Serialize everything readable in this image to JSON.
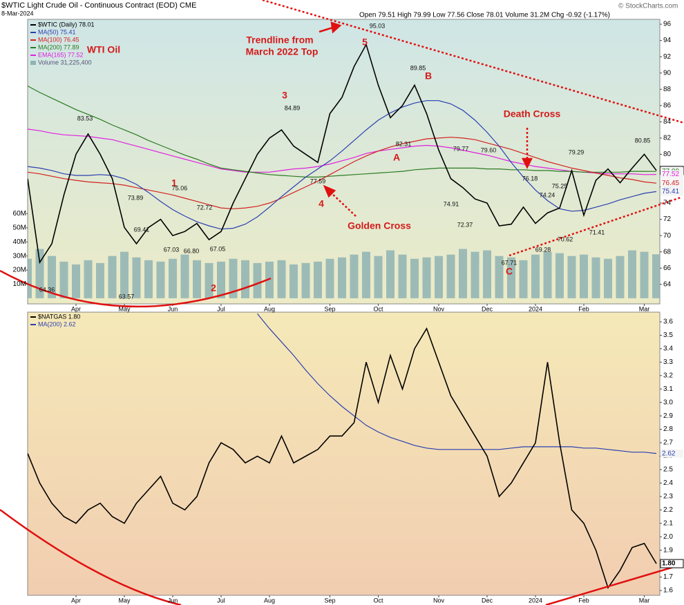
{
  "chart_data": [
    {
      "type": "line",
      "title": "$WTIC Light Crude Oil - Continuous Contract (EOD) CME",
      "date": "8-Mar-2024",
      "quote": "Open 79.51 High 79.99 Low 77.56 Close 78.01 Volume 31.2M Chg -0.92 (-1.17%)",
      "source": "© StockCharts.com",
      "categories": [
        null,
        null,
        null,
        null,
        "Apr",
        null,
        null,
        null,
        "May",
        null,
        null,
        null,
        "Jun",
        null,
        null,
        null,
        "Jul",
        null,
        null,
        null,
        "Aug",
        null,
        null,
        null,
        null,
        "Sep",
        null,
        null,
        null,
        "Oct",
        null,
        null,
        null,
        null,
        "Nov",
        null,
        null,
        null,
        "Dec",
        null,
        null,
        null,
        "2024",
        null,
        null,
        null,
        "Feb",
        null,
        null,
        null,
        null,
        "Mar",
        null
      ],
      "series": [
        {
          "name": "$WTIC (Daily) 78.01",
          "color": "#000000",
          "values": [
            77,
            66.7,
            69,
            75,
            80,
            82.5,
            80,
            77,
            71,
            69,
            71,
            72,
            70,
            70.5,
            71.5,
            69.5,
            70.5,
            74,
            77,
            80,
            82,
            83,
            81,
            80,
            79,
            85,
            87,
            90.8,
            93.5,
            88.5,
            84.5,
            86,
            88.5,
            85,
            80.5,
            77,
            75.9,
            74.5,
            74,
            71.2,
            71.4,
            73.5,
            71.5,
            72.8,
            73.4,
            78,
            72.5,
            76.8,
            78.2,
            76.5,
            78.3,
            80,
            78.01
          ]
        },
        {
          "name": "MA(50) 75.41",
          "color": "#2a3fb0",
          "values": [
            78.5,
            78.3,
            78,
            77.6,
            77.4,
            77.4,
            77.5,
            77.4,
            77,
            76.3,
            75.3,
            74.2,
            73.2,
            72.4,
            71.7,
            71.2,
            70.8,
            70.9,
            71.4,
            72.3,
            73.5,
            74.8,
            76,
            77.2,
            78.2,
            79.2,
            80.4,
            81.7,
            83,
            84.2,
            85.1,
            85.8,
            86.3,
            86.6,
            86.6,
            86.2,
            85.4,
            84.2,
            82.7,
            81,
            79,
            77.2,
            75.6,
            74.3,
            73.3,
            73,
            73.1,
            73.5,
            73.9,
            74.4,
            74.8,
            75.2,
            75.41
          ]
        },
        {
          "name": "MA(100) 76.45",
          "color": "#d42020",
          "values": [
            77.8,
            77.6,
            77.3,
            77,
            76.8,
            76.6,
            76.5,
            76.4,
            76.2,
            75.9,
            75.6,
            75.3,
            75,
            74.6,
            74.2,
            73.8,
            73.4,
            73.3,
            73.4,
            73.6,
            74,
            74.6,
            75.3,
            76,
            76.7,
            77.5,
            78.3,
            79.1,
            79.8,
            80.4,
            80.9,
            81.3,
            81.6,
            81.9,
            82,
            82.1,
            82,
            81.8,
            81.4,
            81,
            80.6,
            80.1,
            79.6,
            79.1,
            78.7,
            78.3,
            78,
            77.7,
            77.4,
            77.1,
            76.9,
            76.6,
            76.45
          ]
        },
        {
          "name": "MA(200) 77.89",
          "color": "#2a7a20",
          "values": [
            88.4,
            87.6,
            86.9,
            86.2,
            85.5,
            84.9,
            84.3,
            83.6,
            83,
            82.4,
            81.7,
            81.1,
            80.5,
            79.9,
            79.4,
            78.8,
            78.3,
            78.1,
            77.9,
            77.7,
            77.5,
            77.4,
            77.3,
            77.2,
            77.2,
            77.3,
            77.4,
            77.5,
            77.6,
            77.7,
            77.8,
            77.9,
            78.1,
            78.2,
            78.3,
            78.3,
            78.3,
            78.3,
            78.2,
            78.2,
            78.1,
            78.1,
            78,
            78,
            77.9,
            77.9,
            77.8,
            77.8,
            77.8,
            77.8,
            77.9,
            77.9,
            77.89
          ]
        },
        {
          "name": "EMA(165) 77.52",
          "color": "#e020e0",
          "values": [
            83.1,
            82.9,
            82.6,
            82.4,
            82.3,
            82.2,
            82,
            81.8,
            81.4,
            81,
            80.6,
            80.2,
            79.8,
            79.4,
            79,
            78.6,
            78.2,
            78,
            77.8,
            77.8,
            77.8,
            78,
            78.2,
            78.3,
            78.5,
            78.8,
            79.2,
            79.6,
            80.1,
            80.4,
            80.6,
            80.8,
            81,
            81.1,
            81,
            80.8,
            80.5,
            80.2,
            79.9,
            79.5,
            79.1,
            78.8,
            78.5,
            78.3,
            78.1,
            77.9,
            77.8,
            77.7,
            77.6,
            77.6,
            77.6,
            77.5,
            77.52
          ]
        }
      ],
      "volume": {
        "name": "Volume 31,225,400",
        "color": "#8fb3b3",
        "values": [
          28,
          35,
          30,
          26,
          24,
          27,
          25,
          30,
          33,
          29,
          27,
          26,
          28,
          31,
          27,
          25,
          26,
          28,
          27,
          25,
          26,
          27,
          24,
          25,
          26,
          28,
          29,
          31,
          33,
          30,
          34,
          31,
          28,
          29,
          30,
          31,
          35,
          33,
          34,
          30,
          29,
          27,
          31,
          33,
          32,
          30,
          31,
          29,
          28,
          30,
          34,
          33,
          31.2
        ],
        "ylim": [
          -4,
          198
        ],
        "yticks": [
          {
            "value": 10,
            "label": "10M"
          },
          {
            "value": 20,
            "label": "20M"
          },
          {
            "value": 30,
            "label": "30M"
          },
          {
            "value": 40,
            "label": "40M"
          },
          {
            "value": 50,
            "label": "50M"
          },
          {
            "value": 60,
            "label": "60M"
          }
        ]
      },
      "ylim": [
        61.6,
        96.6
      ],
      "yticks": [
        64,
        66,
        68,
        70,
        72,
        74,
        76,
        78,
        80,
        82,
        84,
        86,
        88,
        90,
        92,
        94,
        96
      ],
      "grid": false,
      "annotations": [
        "WTI Oil",
        "Trendline from",
        "March 2022 Top",
        "5",
        "3",
        "1",
        "2",
        "4",
        "B",
        "A",
        "C",
        "Golden Cross",
        "Death Cross"
      ],
      "point_labels": [
        83.53,
        73.89,
        69.41,
        63.57,
        64.36,
        75.06,
        67.03,
        {
          "value": 66.8,
          "label": "66.80"
        },
        72.72,
        67.05,
        84.89,
        77.59,
        95.03,
        89.85,
        82.31,
        79.77,
        {
          "value": 79.6,
          "label": "79.60"
        },
        74.91,
        72.37,
        67.71,
        76.18,
        74.24,
        75.25,
        69.28,
        70.62,
        79.29,
        71.41,
        80.85
      ]
    },
    {
      "type": "line",
      "categories": [
        null,
        null,
        null,
        null,
        "Apr",
        null,
        null,
        null,
        "May",
        null,
        null,
        null,
        "Jun",
        null,
        null,
        null,
        "Jul",
        null,
        null,
        null,
        "Aug",
        null,
        null,
        null,
        null,
        "Sep",
        null,
        null,
        null,
        "Oct",
        null,
        null,
        null,
        null,
        "Nov",
        null,
        null,
        null,
        "Dec",
        null,
        null,
        null,
        "2024",
        null,
        null,
        null,
        "Feb",
        null,
        null,
        null,
        null,
        "Mar",
        null
      ],
      "series": [
        {
          "name": "$NATGAS 1.80",
          "color": "#000000",
          "values": [
            2.62,
            2.4,
            2.25,
            2.15,
            2.1,
            2.2,
            2.25,
            2.15,
            2.1,
            2.25,
            2.35,
            2.45,
            2.25,
            2.2,
            2.3,
            2.55,
            2.7,
            2.65,
            2.55,
            2.6,
            2.55,
            2.75,
            2.55,
            2.6,
            2.65,
            2.75,
            2.75,
            2.85,
            3.3,
            3,
            3.35,
            3.1,
            3.4,
            3.55,
            3.3,
            3.05,
            2.9,
            2.75,
            2.6,
            2.3,
            2.4,
            2.55,
            2.7,
            3.3,
            2.7,
            2.2,
            2.1,
            1.9,
            1.62,
            1.75,
            1.92,
            1.95,
            1.8
          ],
          "value_labels": [
            null,
            null,
            null,
            null,
            null,
            null,
            null,
            null,
            null,
            null,
            null,
            null,
            null,
            null,
            null,
            null,
            null,
            null,
            null,
            null,
            null,
            null,
            null,
            null,
            null,
            null,
            null,
            null,
            null,
            null,
            null,
            null,
            null,
            null,
            null,
            null,
            null,
            null,
            null,
            null,
            null,
            null,
            null,
            null,
            null,
            null,
            null,
            null,
            null,
            null,
            null,
            null,
            "1.80"
          ]
        },
        {
          "name": "MA(200) 2.62",
          "color": "#2a3fb0",
          "values": [
            null,
            null,
            null,
            null,
            null,
            null,
            null,
            null,
            null,
            null,
            null,
            null,
            null,
            null,
            null,
            null,
            null,
            null,
            null,
            3.66,
            3.55,
            3.45,
            3.35,
            3.24,
            3.14,
            3.05,
            2.97,
            2.9,
            2.83,
            2.78,
            2.74,
            2.71,
            2.68,
            2.66,
            2.65,
            2.65,
            2.65,
            2.65,
            2.65,
            2.65,
            2.66,
            2.67,
            2.67,
            2.67,
            2.67,
            2.67,
            2.66,
            2.66,
            2.65,
            2.64,
            2.63,
            2.63,
            2.62
          ]
        }
      ],
      "ylim": [
        1.564,
        3.672
      ],
      "yticks": [
        1.6,
        1.7,
        1.8,
        1.9,
        {
          "value": 2,
          "label": "2.0"
        },
        2.1,
        2.2,
        2.3,
        2.4,
        2.5,
        2.6,
        2.7,
        2.8,
        2.9,
        {
          "value": 3,
          "label": "3.0"
        },
        3.1,
        3.2,
        3.3,
        3.4,
        3.5,
        3.6
      ],
      "grid": false
    }
  ]
}
